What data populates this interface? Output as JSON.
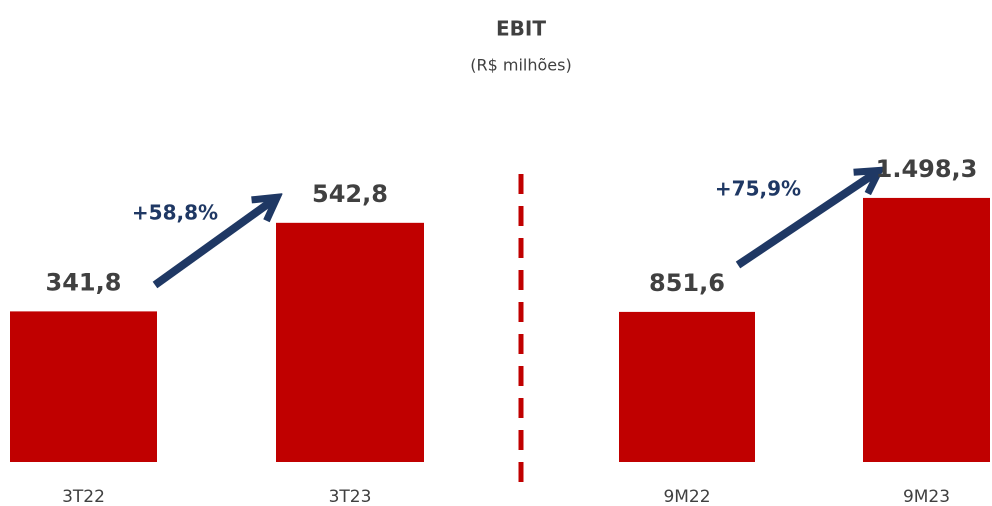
{
  "title": "EBIT",
  "subtitle": "(R$ milhões)",
  "chart_data": [
    {
      "type": "bar",
      "categories": [
        "3T22",
        "3T23"
      ],
      "values": [
        341.8,
        542.8
      ],
      "value_labels": [
        "341,8",
        "542,8"
      ],
      "color": "#c00000",
      "ylim": [
        0,
        640
      ],
      "annotation": "+58,8%"
    },
    {
      "type": "bar",
      "categories": [
        "9M22",
        "9M23"
      ],
      "values": [
        851.6,
        1498.3
      ],
      "value_labels": [
        "851,6",
        "1.498,3"
      ],
      "color": "#c00000",
      "ylim": [
        0,
        1600
      ],
      "annotation": "+75,9%"
    }
  ]
}
